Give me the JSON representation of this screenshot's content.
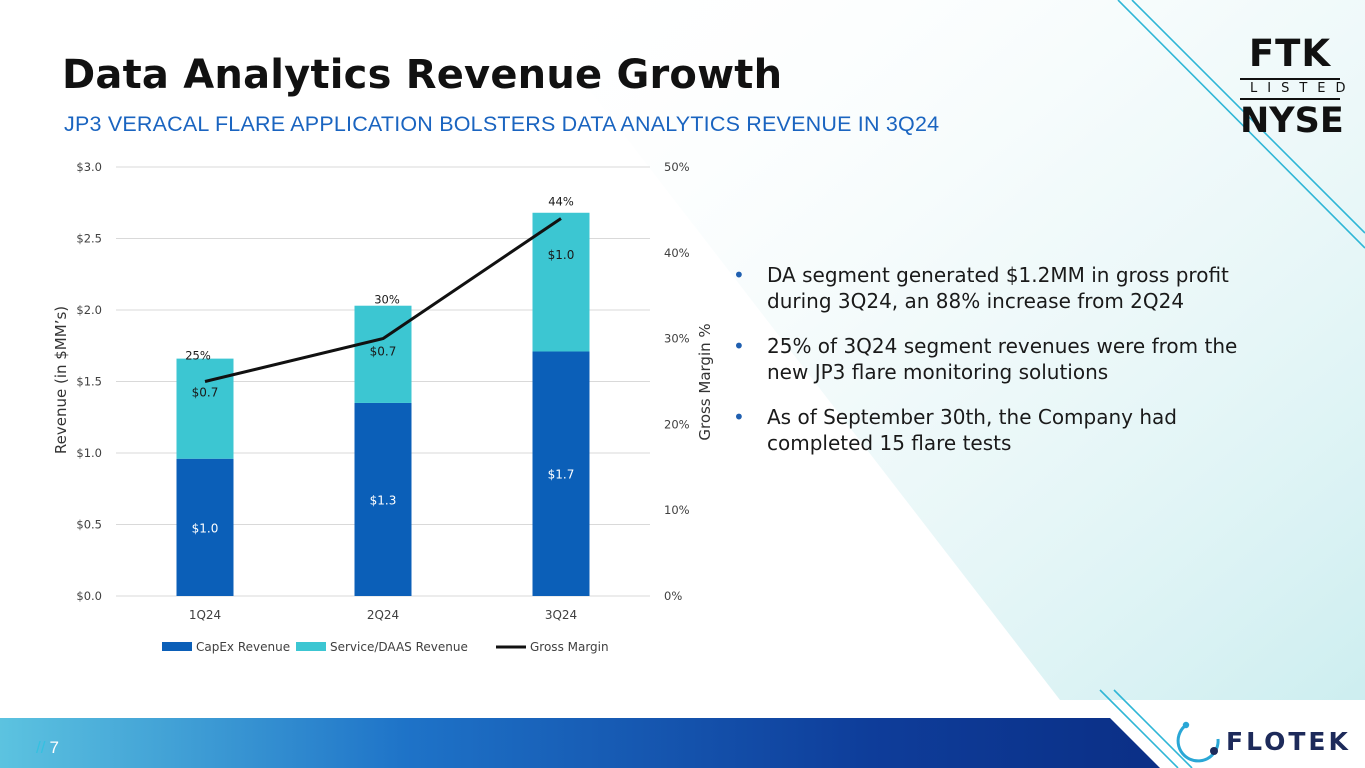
{
  "slide": {
    "title": "Data Analytics Revenue Growth",
    "subtitle": "JP3 VERACAL FLARE APPLICATION BOLSTERS DATA ANALYTICS REVENUE IN 3Q24",
    "page_prefix": "//",
    "page_number": "7",
    "bullets": [
      "DA segment generated $1.2MM in gross profit during 3Q24, an 88% increase from 2Q24",
      "25% of 3Q24 segment revenues were from the new JP3 flare monitoring solutions",
      "As of September 30th, the Company had completed 15 flare tests"
    ],
    "logo": {
      "line1": "FTK",
      "line2": "LISTED",
      "line3": "NYSE"
    },
    "brand": "FLOTEK"
  },
  "colors": {
    "capex": "#0b5fb8",
    "service": "#3cc6d2",
    "margin_line": "#111111",
    "title": "#111111",
    "subtitle": "#1a64c0",
    "brand_navy": "#1d2a5a"
  },
  "chart_data": {
    "type": "bar",
    "stacked": true,
    "categories": [
      "1Q24",
      "2Q24",
      "3Q24"
    ],
    "series": [
      {
        "name": "CapEx Revenue",
        "values": [
          0.96,
          1.35,
          1.71
        ],
        "labels": [
          "$1.0",
          "$1.3",
          "$1.7"
        ]
      },
      {
        "name": "Service/DAAS Revenue",
        "values": [
          0.7,
          0.68,
          0.97
        ],
        "labels": [
          "$0.7",
          "$0.7",
          "$1.0"
        ]
      }
    ],
    "line_series": {
      "name": "Gross Margin",
      "values": [
        25,
        30,
        44
      ],
      "labels": [
        "25%",
        "30%",
        "44%"
      ]
    },
    "ylabel": "Revenue (in $MM’s)",
    "y2label": "Gross Margin %",
    "ylim": [
      0,
      3.0
    ],
    "y2lim": [
      0,
      50
    ],
    "yticks": [
      "$0.0",
      "$0.5",
      "$1.0",
      "$1.5",
      "$2.0",
      "$2.5",
      "$3.0"
    ],
    "y2ticks": [
      "0%",
      "10%",
      "20%",
      "30%",
      "40%",
      "50%"
    ],
    "grid": true,
    "legend": [
      "CapEx Revenue",
      "Service/DAAS Revenue",
      "Gross Margin"
    ],
    "legend_position": "bottom"
  }
}
